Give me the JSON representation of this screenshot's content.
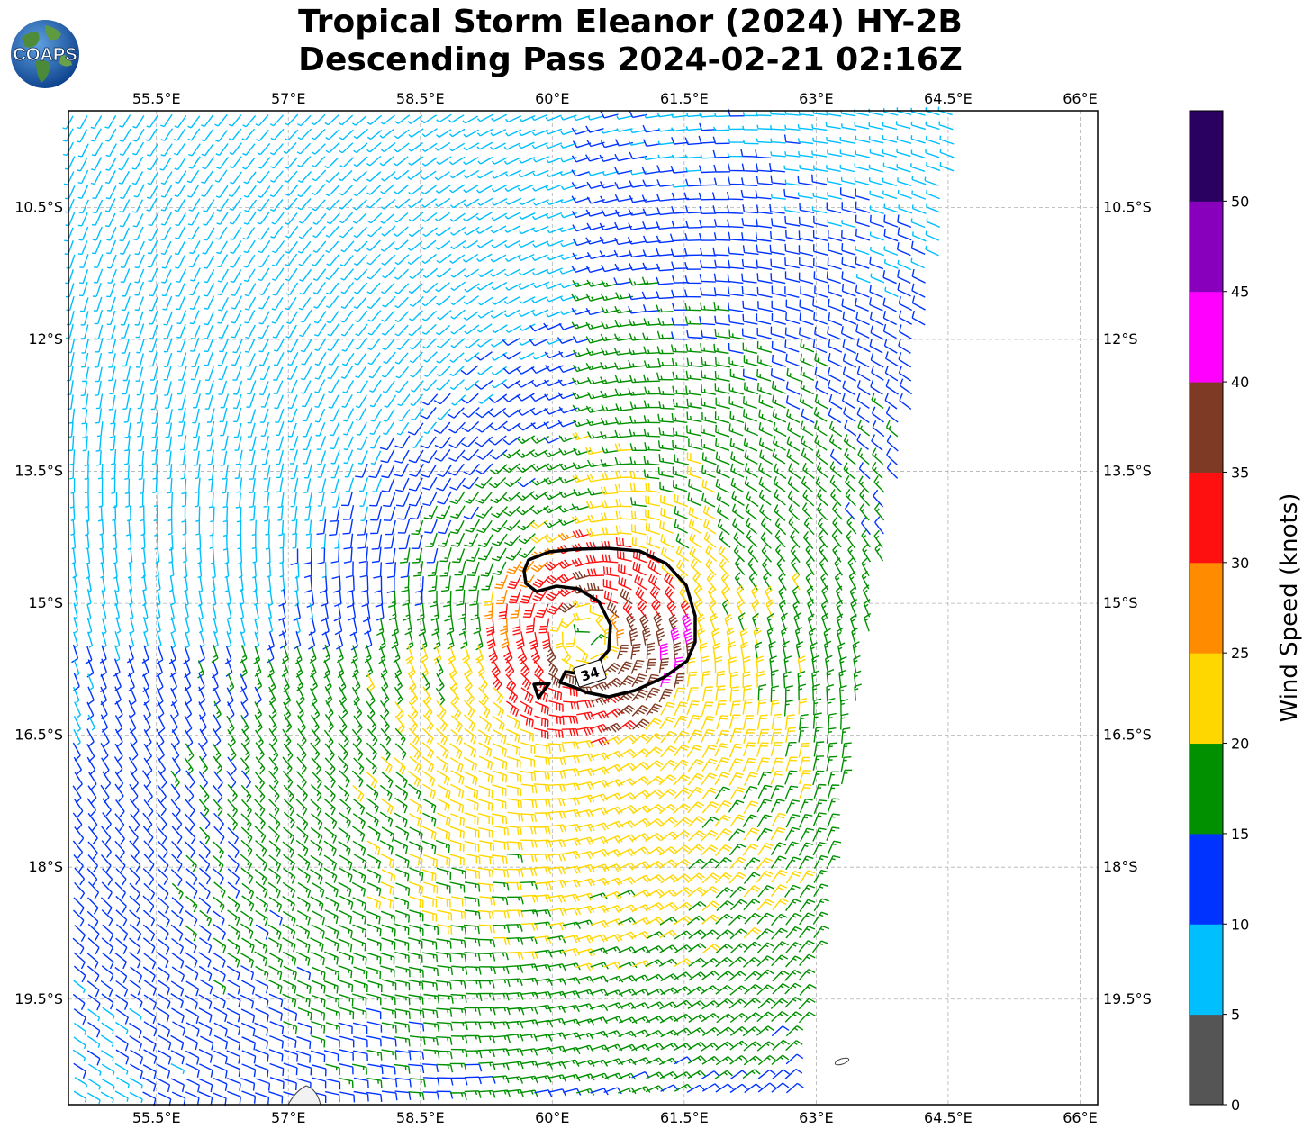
{
  "title": {
    "line1": "Tropical Storm Eleanor (2024) HY-2B",
    "line2": "Descending Pass 2024-02-21 02:16Z"
  },
  "logo": {
    "text": "COAPS",
    "icon": "globe-logo"
  },
  "map": {
    "projection": "plate-carree",
    "lon_range": [
      54.5,
      66.2
    ],
    "lat_range": [
      -20.7,
      -9.4
    ],
    "lon_ticks": [
      "55.5°E",
      "57°E",
      "58.5°E",
      "60°E",
      "61.5°E",
      "63°E",
      "64.5°E",
      "66°E"
    ],
    "lat_ticks": [
      "10.5°S",
      "12°S",
      "13.5°S",
      "15°S",
      "16.5°S",
      "18°S",
      "19.5°S"
    ],
    "grid": true,
    "storm_center": {
      "lon": 60.4,
      "lat": -15.4
    },
    "contour": {
      "label": "34",
      "units": "knots",
      "color": "#000000"
    },
    "barbs": "wind barbs colored by speed"
  },
  "colorbar": {
    "label": "Wind Speed (knots)",
    "ticks": [
      "0",
      "5",
      "10",
      "15",
      "20",
      "25",
      "30",
      "35",
      "40",
      "45",
      "50"
    ],
    "colors": [
      "#555555",
      "#00bfff",
      "#0033ff",
      "#009000",
      "#ffd700",
      "#ff8c00",
      "#ff1010",
      "#7f3a25",
      "#ff00ff",
      "#8800bb",
      "#2a0060"
    ]
  }
}
